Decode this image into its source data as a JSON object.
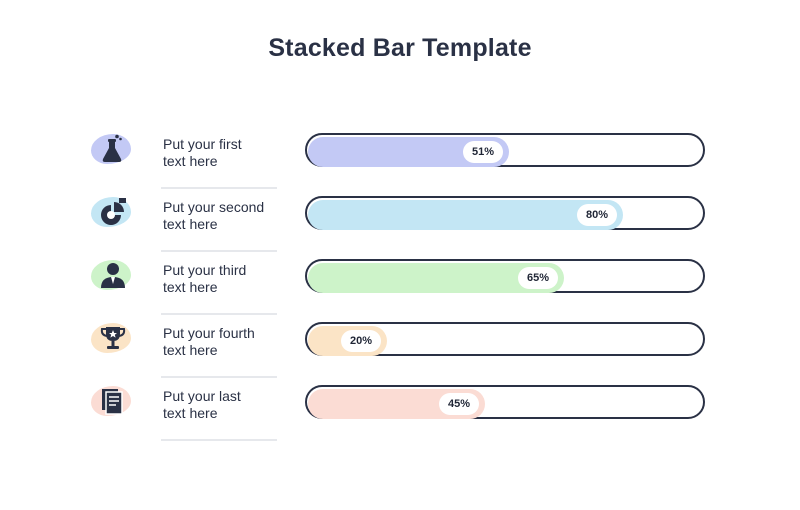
{
  "title": "Stacked Bar Template",
  "colors": {
    "text": "#2a3145",
    "track_border": "#2a3145",
    "fills": [
      "#c3c9f5",
      "#c3e6f4",
      "#cdf3c9",
      "#fbe4c6",
      "#fbdcd4"
    ]
  },
  "chart_data": {
    "type": "bar",
    "orientation": "horizontal",
    "title": "Stacked Bar Template",
    "xlim": [
      0,
      100
    ],
    "grid": false,
    "categories": [
      "Put your first text here",
      "Put your second text here",
      "Put your third text here",
      "Put your fourth text here",
      "Put your last text here"
    ],
    "values": [
      51,
      80,
      65,
      20,
      45
    ],
    "data_labels": [
      "51%",
      "80%",
      "65%",
      "20%",
      "45%"
    ]
  },
  "rows": [
    {
      "line1": "Put your first",
      "line2": "text here",
      "icon": "flask-icon"
    },
    {
      "line1": "Put your second",
      "line2": "text here",
      "icon": "pie-chart-icon"
    },
    {
      "line1": "Put your third",
      "line2": "text here",
      "icon": "businessman-icon"
    },
    {
      "line1": "Put your fourth",
      "line2": "text here",
      "icon": "trophy-icon"
    },
    {
      "line1": "Put your last",
      "line2": "text here",
      "icon": "documents-icon"
    }
  ]
}
